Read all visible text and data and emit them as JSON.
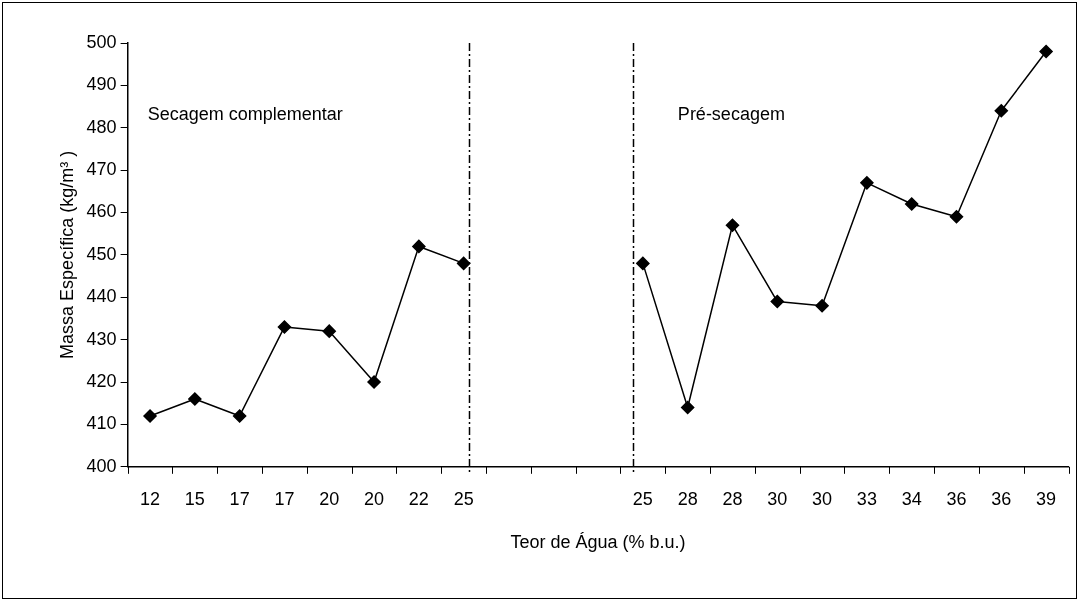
{
  "chart_data": {
    "type": "line",
    "xlabel": "Teor de Água (% b.u.)",
    "ylabel": "Massa Específica (kg/m³ )",
    "categories": [
      "12",
      "15",
      "17",
      "17",
      "20",
      "20",
      "22",
      "25",
      null,
      null,
      null,
      "25",
      "28",
      "28",
      "30",
      "30",
      "33",
      "34",
      "36",
      "36",
      "39"
    ],
    "series": [
      {
        "color": "#000000",
        "values": [
          412,
          416,
          412,
          433,
          432,
          420,
          452,
          448,
          null,
          null,
          null,
          448,
          414,
          457,
          439,
          438,
          467,
          462,
          459,
          484,
          498
        ]
      }
    ],
    "ylim": [
      400,
      500
    ],
    "yticks": [
      400,
      410,
      420,
      430,
      440,
      450,
      460,
      470,
      480,
      490,
      500
    ],
    "annotations": [
      "Secagem complementar",
      "Pré-secagem"
    ],
    "legend": false,
    "marker": "diamond",
    "line_style": "solid"
  }
}
